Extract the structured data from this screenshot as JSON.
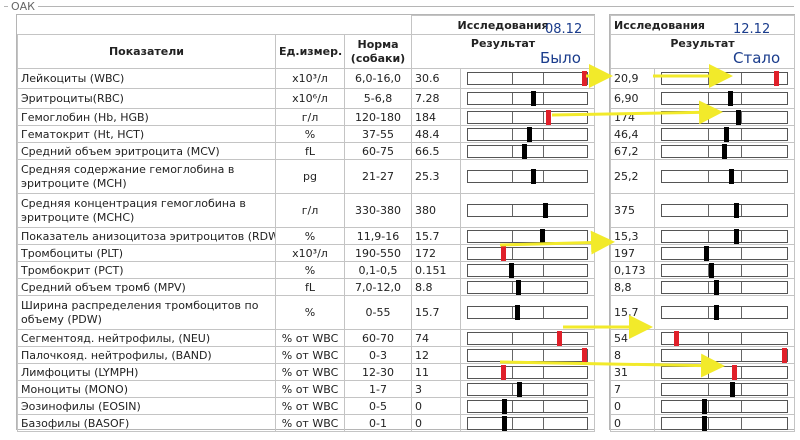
{
  "section_title": "ОАК",
  "left": {
    "group_header": "Исследования",
    "date": "08.12",
    "state": "Было",
    "headers": {
      "name": "Показатели",
      "unit": "Ед.измер.",
      "norm": "Норма\n(собаки)",
      "result": "Результат"
    },
    "rows": [
      {
        "name": "Лейкоциты (WBC)",
        "unit": "x10³/л",
        "norm": "6,0-16,0",
        "value": "30.6",
        "marker": 1.0,
        "alert": true
      },
      {
        "name": "Эритроциты(RBC)",
        "unit": "x10⁶/л",
        "norm": "5-6,8",
        "value": "7.28",
        "marker": 0.55,
        "alert": false
      },
      {
        "name": "Гемоглобин (Hb, HGB)",
        "unit": "г/л",
        "norm": "120-180",
        "value": "184",
        "marker": 0.68,
        "alert": true
      },
      {
        "name": "Гематокрит (Ht, HCT)",
        "unit": "%",
        "norm": "37-55",
        "value": "48.4",
        "marker": 0.52,
        "alert": false
      },
      {
        "name": "Средний объем эритроцита (MCV)",
        "unit": "fL",
        "norm": "60-75",
        "value": "66.5",
        "marker": 0.47,
        "alert": false
      },
      {
        "name": "Средняя содержание гемоглобина в эритроците (MCH)",
        "unit": "pg",
        "norm": "21-27",
        "value": "25.3",
        "marker": 0.55,
        "alert": false
      },
      {
        "name": "Средняя концентрация гемоглобина в эритроците (MCHC)",
        "unit": "г/л",
        "norm": "330-380",
        "value": "380",
        "marker": 0.66,
        "alert": false
      },
      {
        "name": "Показатель анизоцитоза эритроцитов (RDW)",
        "unit": "%",
        "norm": "11,9-16",
        "value": "15.7",
        "marker": 0.63,
        "alert": false
      },
      {
        "name": "Тромбоциты (PLT)",
        "unit": "x10³/л",
        "norm": "190-550",
        "value": "172",
        "marker": 0.29,
        "alert": true
      },
      {
        "name": "Тромбокрит (PCT)",
        "unit": "%",
        "norm": "0,1-0,5",
        "value": "0.151",
        "marker": 0.36,
        "alert": false
      },
      {
        "name": "Средний объем тромб (MPV)",
        "unit": "fL",
        "norm": "7,0-12,0",
        "value": "8.8",
        "marker": 0.42,
        "alert": false
      },
      {
        "name": "Ширина распределения тромбоцитов по объему (PDW)",
        "unit": "%",
        "norm": "0-55",
        "value": "15.7",
        "marker": 0.41,
        "alert": false
      },
      {
        "name": "Сегментояд. нейтрофилы, (NEU)",
        "unit": "% от WBC",
        "norm": "60-70",
        "value": "74",
        "marker": 0.78,
        "alert": true
      },
      {
        "name": "Палочкояд. нейтрофилы, (BAND)",
        "unit": "% от WBC",
        "norm": "0-3",
        "value": "12",
        "marker": 1.0,
        "alert": true
      },
      {
        "name": "Лимфоциты (LYMPH)",
        "unit": "% от WBC",
        "norm": "12-30",
        "value": "11",
        "marker": 0.29,
        "alert": true
      },
      {
        "name": "Моноциты (MONO)",
        "unit": "% от WBC",
        "norm": "1-7",
        "value": "3",
        "marker": 0.43,
        "alert": false
      },
      {
        "name": "Эозинофилы (EOSIN)",
        "unit": "% от WBC",
        "norm": "0-5",
        "value": "0",
        "marker": 0.3,
        "alert": false
      },
      {
        "name": "Базофилы (BASOF)",
        "unit": "% от WBC",
        "norm": "0-1",
        "value": "0",
        "marker": 0.3,
        "alert": false
      }
    ]
  },
  "right": {
    "group_header": "Исследования",
    "date": "12.12",
    "state": "Стало",
    "result_header": "Результат",
    "rows": [
      {
        "value": "20,9",
        "marker": 0.93,
        "alert": true
      },
      {
        "value": "6,90",
        "marker": 0.55,
        "alert": false
      },
      {
        "value": "174",
        "marker": 0.62,
        "alert": false
      },
      {
        "value": "46,4",
        "marker": 0.52,
        "alert": false
      },
      {
        "value": "67,2",
        "marker": 0.5,
        "alert": false
      },
      {
        "value": "25,2",
        "marker": 0.56,
        "alert": false
      },
      {
        "value": "375",
        "marker": 0.6,
        "alert": false
      },
      {
        "value": "15,3",
        "marker": 0.6,
        "alert": false
      },
      {
        "value": "197",
        "marker": 0.35,
        "alert": false
      },
      {
        "value": "0,173",
        "marker": 0.39,
        "alert": false
      },
      {
        "value": "8,8",
        "marker": 0.43,
        "alert": false
      },
      {
        "value": "15,7",
        "marker": 0.43,
        "alert": false
      },
      {
        "value": "54",
        "marker": 0.1,
        "alert": true
      },
      {
        "value": "8",
        "marker": 1.0,
        "alert": true
      },
      {
        "value": "31",
        "marker": 0.58,
        "alert": true
      },
      {
        "value": "7",
        "marker": 0.57,
        "alert": false
      },
      {
        "value": "0",
        "marker": 0.33,
        "alert": false
      },
      {
        "value": "0",
        "marker": 0.33,
        "alert": false
      }
    ]
  },
  "colors": {
    "alert_marker": "#e0202a",
    "normal_marker": "#000000",
    "arrow": "#f2ea2a",
    "annotation_text": "#1a3c8c"
  }
}
